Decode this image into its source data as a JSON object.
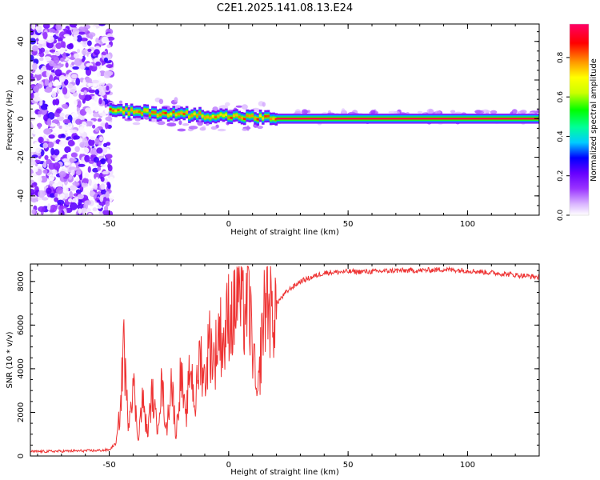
{
  "page": {
    "title": "C2E1.2025.141.08.13.E24"
  },
  "chart_data": [
    {
      "type": "heatmap",
      "title": "C2E1.2025.141.08.13.E24",
      "xlabel": "Height of straight line (km)",
      "ylabel": "Frequency (Hz)",
      "xlim": [
        -83,
        130
      ],
      "ylim": [
        -50,
        49
      ],
      "xticks": [
        -50,
        0,
        50,
        100
      ],
      "yticks": [
        -40,
        -20,
        0,
        20,
        40
      ],
      "grid": false,
      "colorbar": {
        "label": "Normalized spectral amplitude",
        "range": [
          0.0,
          0.97
        ],
        "ticks": [
          "0.0",
          "0.2",
          "0.4",
          "0.6",
          "0.8"
        ],
        "colors": [
          "#ffffff",
          "#d9b3ff",
          "#9933ff",
          "#6600ff",
          "#0000ff",
          "#00ccff",
          "#00ff99",
          "#00ff00",
          "#ccff00",
          "#ffff00",
          "#ff9900",
          "#ff0000",
          "#ff0066"
        ]
      },
      "regions": [
        {
          "x_range": [
            -83,
            -50
          ],
          "description_values": {
            "noise_freq_range": [
              -50,
              49
            ],
            "max_amplitude": 0.3
          }
        },
        {
          "x_range": [
            -50,
            20
          ],
          "peak_freq_hz": [
            4,
            0
          ],
          "max_amplitude": 0.9
        },
        {
          "x_range": [
            20,
            130
          ],
          "peak_freq_hz": 0,
          "max_amplitude": 0.97
        }
      ]
    },
    {
      "type": "line",
      "xlabel": "Height of straight line (km)",
      "ylabel": "SNR (10 * v/v)",
      "xlim": [
        -83,
        130
      ],
      "ylim": [
        0,
        8800
      ],
      "xticks": [
        -50,
        0,
        50,
        100
      ],
      "yticks": [
        0,
        2000,
        4000,
        6000,
        8000
      ],
      "grid": false,
      "series": [
        {
          "color": "#ee3333",
          "x": [
            -83,
            -70,
            -55,
            -50,
            -47,
            -45,
            -44,
            -43,
            -42,
            -40,
            -38,
            -36,
            -34,
            -32,
            -30,
            -28,
            -26,
            -24,
            -22,
            -20,
            -18,
            -16,
            -14,
            -12,
            -10,
            -8,
            -6,
            -4,
            -2,
            0,
            2,
            4,
            6,
            8,
            10,
            12,
            14,
            16,
            18,
            20,
            25,
            30,
            35,
            40,
            50,
            60,
            70,
            80,
            90,
            100,
            110,
            120,
            130
          ],
          "y": [
            200,
            220,
            250,
            280,
            600,
            2500,
            5800,
            3000,
            1600,
            3500,
            800,
            2600,
            1000,
            2900,
            1300,
            3300,
            1100,
            3600,
            900,
            3900,
            1500,
            4300,
            2200,
            4800,
            3400,
            5300,
            4300,
            5800,
            5100,
            6600,
            6300,
            7800,
            6400,
            7300,
            5200,
            2200,
            5700,
            7500,
            6300,
            7000,
            7600,
            8000,
            8200,
            8400,
            8450,
            8450,
            8500,
            8500,
            8550,
            8500,
            8400,
            8300,
            8200
          ]
        }
      ]
    }
  ]
}
